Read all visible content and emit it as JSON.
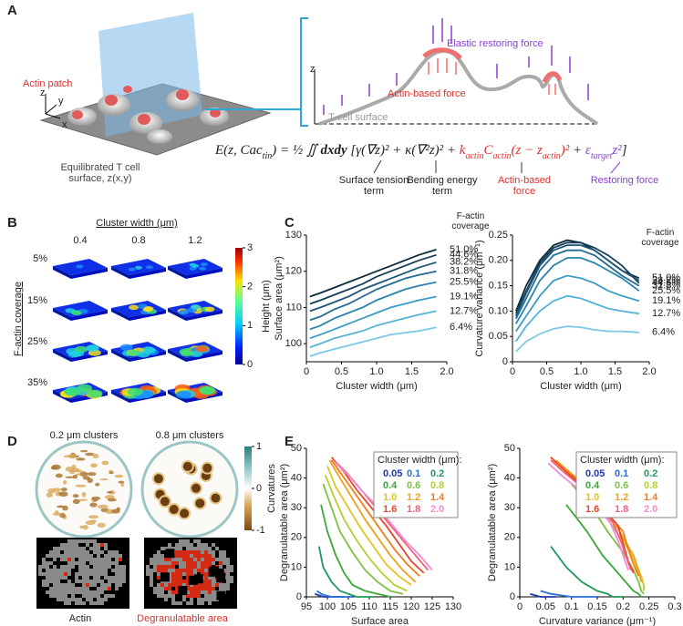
{
  "panel_a": {
    "label": "A",
    "actin_patch": "Actin patch",
    "axis_z": "z",
    "axis_y": "y",
    "axis_x": "x",
    "surface_caption": "Equilibrated T cell surface, z(x,y)",
    "elastic_force": "Elastic restoring force",
    "actin_force": "Actin-based force",
    "tcell_surface": "T-cell surface",
    "schematic_z": "z",
    "equation": [
      "E(z, Cac",
      "tin",
      ") = ",
      "½",
      " ∬ ",
      "dxdy",
      " [γ(∇z)² + κ(∇²z)² + ",
      "k",
      "actin",
      "C",
      "actin",
      "(z − z",
      "actin",
      ")²",
      " + ",
      "ε",
      "target",
      "z²",
      "]"
    ],
    "terms": [
      "Surface tension term",
      "Bending energy term",
      "Actin-based force",
      "Restoring force"
    ]
  },
  "panel_b": {
    "label": "B",
    "title": "Cluster width (μm)",
    "columns": [
      "0.4",
      "0.8",
      "1.2"
    ],
    "rows": [
      "5%",
      "15%",
      "25%",
      "35%"
    ],
    "ylabel": "F-actin coverage",
    "colorbar_label": "Height (μm)",
    "colorbar_lim": [
      0,
      3
    ],
    "colorbar_ticks": [
      0,
      1,
      2,
      3
    ]
  },
  "panel_c": {
    "label": "C"
  },
  "panel_d": {
    "label": "D",
    "titles": [
      "0.2 μm clusters",
      "0.8 μm clusters"
    ],
    "colorbar_label": "Curvatures",
    "colorbar_lim": [
      -1,
      1
    ],
    "colorbar_ticks": [
      1,
      0,
      -1
    ],
    "legend": [
      "Actin",
      "Degranulatable area"
    ]
  },
  "panel_e": {
    "label": "E"
  },
  "chart_data": [
    {
      "type": "line",
      "xlabel": "Cluster width (μm)",
      "ylabel": "Surface area (μm²)",
      "legend_title": "F-actin coverage",
      "xlim": [
        0,
        2
      ],
      "ylim": [
        95,
        130
      ],
      "xticks": [
        0,
        0.5,
        {
          "value": 1,
          "label": "1.0"
        },
        1.5,
        {
          "value": 2,
          "label": "2.0"
        }
      ],
      "yticks": [
        100,
        110,
        120,
        130
      ],
      "x": [
        0.05,
        0.2,
        0.4,
        0.6,
        0.8,
        1.0,
        1.2,
        1.4,
        1.6,
        1.85
      ],
      "series": [
        {
          "name": "51.0%",
          "color": "#0b2a3c",
          "values": [
            113,
            114,
            115.5,
            117,
            118.5,
            120,
            121.5,
            123,
            124.5,
            126
          ]
        },
        {
          "name": "44.6%",
          "color": "#163f5a",
          "values": [
            111,
            112,
            113.5,
            115,
            116.5,
            118.5,
            120,
            121.5,
            123,
            124.5
          ]
        },
        {
          "name": "38.2%",
          "color": "#1d5577",
          "values": [
            109,
            110,
            111.5,
            113,
            115,
            116.5,
            118,
            119.5,
            121,
            122.5
          ]
        },
        {
          "name": "31.8%",
          "color": "#226c93",
          "values": [
            106.5,
            107.5,
            109.5,
            111,
            113,
            115,
            116.5,
            118,
            119,
            120
          ]
        },
        {
          "name": "25.5%",
          "color": "#2984ad",
          "values": [
            104,
            105,
            107,
            108.5,
            110,
            112,
            113.5,
            115,
            116,
            117
          ]
        },
        {
          "name": "19.1%",
          "color": "#3a9cc4",
          "values": [
            101.5,
            102.5,
            104,
            105.5,
            107,
            108.5,
            110,
            111,
            112,
            113
          ]
        },
        {
          "name": "12.7%",
          "color": "#55b3d6",
          "values": [
            99,
            100,
            101.5,
            102.5,
            103.5,
            105,
            106,
            107,
            108,
            109
          ]
        },
        {
          "name": "6.4%",
          "color": "#7cc8e6",
          "values": [
            96.5,
            97.5,
            98.5,
            99.5,
            100.5,
            101.5,
            102.5,
            103,
            103.5,
            104.5
          ]
        }
      ]
    },
    {
      "type": "line",
      "xlabel": "Cluster width (μm)",
      "ylabel": "Curvature variance (μm⁻¹)",
      "legend_title": "F-actin coverage",
      "xlim": [
        0,
        2
      ],
      "ylim": [
        0,
        0.25
      ],
      "xticks": [
        0,
        0.5,
        {
          "value": 1,
          "label": "1.0"
        },
        1.5,
        {
          "value": 2,
          "label": "2.0"
        }
      ],
      "yticks": [
        0,
        0.05,
        {
          "value": 0.1,
          "label": "0.10"
        },
        0.15,
        {
          "value": 0.2,
          "label": "0.20"
        },
        0.25
      ],
      "x": [
        0.05,
        0.2,
        0.4,
        0.6,
        0.8,
        1.0,
        1.2,
        1.4,
        1.6,
        1.85
      ],
      "series": [
        {
          "name": "51.0%",
          "color": "#0b2a3c",
          "values": [
            0.1,
            0.15,
            0.2,
            0.23,
            0.24,
            0.235,
            0.22,
            0.2,
            0.18,
            0.165
          ]
        },
        {
          "name": "44.6%",
          "color": "#163f5a",
          "values": [
            0.095,
            0.14,
            0.195,
            0.225,
            0.235,
            0.235,
            0.225,
            0.21,
            0.19,
            0.155
          ]
        },
        {
          "name": "38.2%",
          "color": "#1d5577",
          "values": [
            0.09,
            0.135,
            0.19,
            0.22,
            0.23,
            0.23,
            0.22,
            0.2,
            0.18,
            0.16
          ]
        },
        {
          "name": "31.8%",
          "color": "#226c93",
          "values": [
            0.085,
            0.125,
            0.18,
            0.21,
            0.22,
            0.22,
            0.21,
            0.19,
            0.17,
            0.15
          ]
        },
        {
          "name": "25.5%",
          "color": "#2984ad",
          "values": [
            0.075,
            0.11,
            0.16,
            0.19,
            0.205,
            0.205,
            0.195,
            0.18,
            0.165,
            0.14
          ]
        },
        {
          "name": "19.1%",
          "color": "#3a9cc4",
          "values": [
            0.06,
            0.09,
            0.13,
            0.16,
            0.17,
            0.165,
            0.155,
            0.14,
            0.13,
            0.12
          ]
        },
        {
          "name": "12.7%",
          "color": "#55b3d6",
          "values": [
            0.04,
            0.07,
            0.1,
            0.12,
            0.13,
            0.125,
            0.115,
            0.105,
            0.1,
            0.095
          ]
        },
        {
          "name": "6.4%",
          "color": "#7cc8e6",
          "values": [
            0.02,
            0.04,
            0.055,
            0.065,
            0.07,
            0.068,
            0.063,
            0.06,
            0.06,
            0.058
          ]
        }
      ]
    },
    {
      "type": "line",
      "xlabel": "Surface area",
      "ylabel": "Degranulatable area (μm²)",
      "legend_title": "Cluster width (μm):",
      "xlim": [
        95,
        130
      ],
      "ylim": [
        0,
        50
      ],
      "xticks": [
        95,
        100,
        105,
        110,
        115,
        120,
        125,
        130
      ],
      "yticks": [
        0,
        10,
        20,
        30,
        40,
        50
      ],
      "series": [
        {
          "name": "0.05",
          "color": "#1f3aa6",
          "x": [
            97,
            98,
            99,
            100,
            101,
            102,
            103,
            104
          ],
          "values": [
            1,
            0.5,
            0,
            0,
            0,
            0,
            0,
            0
          ]
        },
        {
          "name": "0.1",
          "color": "#2a6fd6",
          "x": [
            97.5,
            98.5,
            99.5,
            101,
            102,
            103.5,
            105,
            106
          ],
          "values": [
            2,
            1,
            0.5,
            0,
            0,
            0,
            0,
            0
          ]
        },
        {
          "name": "0.2",
          "color": "#1f9a5a",
          "x": [
            98,
            99,
            101,
            103,
            105,
            107,
            109,
            111
          ],
          "values": [
            17,
            10,
            5,
            2,
            1,
            0,
            0,
            0
          ]
        },
        {
          "name": "0.4",
          "color": "#3aa83a",
          "x": [
            98.5,
            100,
            102,
            104,
            106,
            109,
            112,
            115
          ],
          "values": [
            31,
            22,
            14,
            8,
            4,
            2,
            1,
            0
          ]
        },
        {
          "name": "0.6",
          "color": "#7cc242",
          "x": [
            99,
            101,
            103,
            106,
            109,
            112,
            115,
            118
          ],
          "values": [
            38,
            30,
            22,
            15,
            9,
            5,
            2,
            1
          ]
        },
        {
          "name": "0.8",
          "color": "#b5cf2e",
          "x": [
            99.5,
            101.5,
            104,
            107,
            110,
            113,
            116,
            119
          ],
          "values": [
            41,
            34,
            26,
            19,
            13,
            8,
            4,
            2
          ]
        },
        {
          "name": "1.0",
          "color": "#e6c21f",
          "x": [
            100,
            102,
            105,
            108,
            111,
            114,
            117,
            120
          ],
          "values": [
            44,
            37,
            30,
            23,
            17,
            11,
            7,
            4
          ]
        },
        {
          "name": "1.2",
          "color": "#f0a21a",
          "x": [
            100.5,
            103,
            106,
            109,
            112,
            115,
            118,
            121
          ],
          "values": [
            46,
            40,
            33,
            26,
            20,
            14,
            9,
            5
          ]
        },
        {
          "name": "1.4",
          "color": "#f07d1a",
          "x": [
            101,
            103.5,
            106.5,
            110,
            113,
            116,
            119,
            122
          ],
          "values": [
            46,
            41,
            35,
            28,
            22,
            16,
            11,
            7
          ]
        },
        {
          "name": "1.6",
          "color": "#e8452a",
          "x": [
            101,
            104,
            107,
            110.5,
            114,
            117,
            120,
            123
          ],
          "values": [
            47,
            42,
            36,
            30,
            24,
            18,
            12,
            8
          ]
        },
        {
          "name": "1.8",
          "color": "#f2607a",
          "x": [
            101.5,
            104.5,
            107.5,
            111,
            114.5,
            118,
            121,
            124
          ],
          "values": [
            46,
            42,
            37,
            31,
            25,
            19,
            14,
            9
          ]
        },
        {
          "name": "2.0",
          "color": "#f48bd4",
          "x": [
            102,
            105,
            108,
            111.5,
            115,
            118.5,
            122,
            125
          ],
          "values": [
            45,
            41,
            36,
            31,
            25,
            19,
            14,
            9
          ]
        }
      ]
    },
    {
      "type": "line",
      "xlabel": "Curvature variance (μm⁻¹)",
      "ylabel": "Degranulatable area (μm²)",
      "legend_title": "Cluster width (μm):",
      "xlim": [
        0,
        0.3
      ],
      "ylim": [
        0,
        50
      ],
      "xticks": [
        0,
        0.05,
        0.1,
        0.15,
        0.2,
        0.25,
        0.3
      ],
      "yticks": [
        0,
        10,
        20,
        30,
        40,
        50
      ],
      "series": [
        {
          "name": "0.05",
          "color": "#1f3aa6",
          "x": [
            0.02,
            0.03,
            0.04,
            0.05,
            0.06,
            0.065,
            0.07,
            0.07
          ],
          "values": [
            1,
            0.5,
            0,
            0,
            0,
            0,
            0,
            0
          ]
        },
        {
          "name": "0.1",
          "color": "#2a6fd6",
          "x": [
            0.04,
            0.06,
            0.08,
            0.1,
            0.12,
            0.13,
            0.14,
            0.15
          ],
          "values": [
            2,
            1,
            0.5,
            0,
            0,
            0,
            0,
            0
          ]
        },
        {
          "name": "0.2",
          "color": "#1f9a5a",
          "x": [
            0.06,
            0.09,
            0.12,
            0.15,
            0.17,
            0.18,
            0.19,
            0.2
          ],
          "values": [
            17,
            10,
            5,
            2,
            1,
            0,
            0,
            0
          ]
        },
        {
          "name": "0.4",
          "color": "#3aa83a",
          "x": [
            0.09,
            0.13,
            0.16,
            0.19,
            0.21,
            0.22,
            0.23,
            0.235
          ],
          "values": [
            31,
            22,
            14,
            8,
            4,
            2,
            1,
            0
          ]
        },
        {
          "name": "0.6",
          "color": "#7cc242",
          "x": [
            0.1,
            0.14,
            0.17,
            0.2,
            0.22,
            0.23,
            0.235,
            0.24
          ],
          "values": [
            38,
            30,
            22,
            15,
            9,
            5,
            2,
            1
          ]
        },
        {
          "name": "0.8",
          "color": "#b5cf2e",
          "x": [
            0.1,
            0.14,
            0.17,
            0.2,
            0.22,
            0.23,
            0.24,
            0.24
          ],
          "values": [
            41,
            34,
            26,
            19,
            13,
            8,
            4,
            2
          ]
        },
        {
          "name": "1.0",
          "color": "#e6c21f",
          "x": [
            0.08,
            0.12,
            0.16,
            0.19,
            0.21,
            0.225,
            0.235,
            0.24
          ],
          "values": [
            44,
            37,
            30,
            23,
            17,
            11,
            7,
            4
          ]
        },
        {
          "name": "1.2",
          "color": "#f0a21a",
          "x": [
            0.07,
            0.11,
            0.15,
            0.18,
            0.2,
            0.22,
            0.23,
            0.235
          ],
          "values": [
            46,
            40,
            33,
            26,
            20,
            14,
            9,
            5
          ]
        },
        {
          "name": "1.4",
          "color": "#f07d1a",
          "x": [
            0.065,
            0.1,
            0.14,
            0.17,
            0.2,
            0.21,
            0.22,
            0.23
          ],
          "values": [
            46,
            41,
            35,
            28,
            22,
            16,
            11,
            7
          ]
        },
        {
          "name": "1.6",
          "color": "#e8452a",
          "x": [
            0.06,
            0.09,
            0.13,
            0.16,
            0.19,
            0.2,
            0.21,
            0.22
          ],
          "values": [
            47,
            42,
            36,
            30,
            24,
            18,
            12,
            8
          ]
        },
        {
          "name": "1.8",
          "color": "#f2607a",
          "x": [
            0.06,
            0.085,
            0.12,
            0.15,
            0.18,
            0.195,
            0.205,
            0.215
          ],
          "values": [
            46,
            42,
            37,
            31,
            25,
            19,
            14,
            9
          ]
        },
        {
          "name": "2.0",
          "color": "#f48bd4",
          "x": [
            0.055,
            0.08,
            0.115,
            0.145,
            0.175,
            0.19,
            0.2,
            0.21
          ],
          "values": [
            45,
            41,
            36,
            31,
            25,
            19,
            14,
            9
          ]
        }
      ]
    }
  ]
}
